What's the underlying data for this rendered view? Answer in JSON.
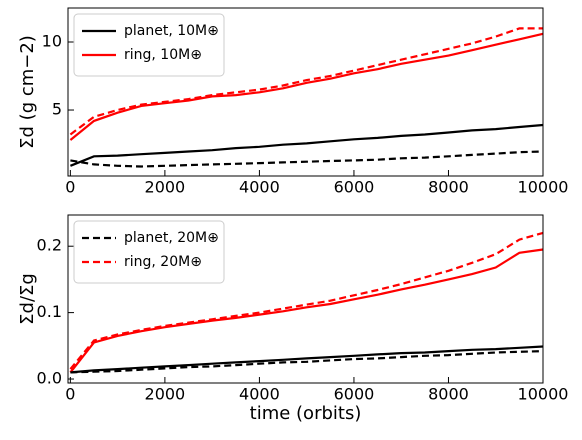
{
  "chart_data": [
    {
      "type": "line",
      "ylabel": "Σd (g cm−2)",
      "x": [
        0,
        500,
        1000,
        1500,
        2000,
        2500,
        3000,
        3500,
        4000,
        4500,
        5000,
        5500,
        6000,
        6500,
        7000,
        7500,
        8000,
        8500,
        9000,
        9500,
        10000
      ],
      "xlim": [
        -50,
        10000
      ],
      "xticks": [
        0,
        2000,
        4000,
        6000,
        8000,
        10000
      ],
      "ylim": [
        0.15,
        12.5
      ],
      "yticks": [
        5,
        10
      ],
      "legend": "upper left",
      "series": [
        {
          "name": "planet, 10M⊕",
          "color": "#000000",
          "dashed": false,
          "values": [
            0.9,
            1.6,
            1.65,
            1.75,
            1.85,
            1.95,
            2.05,
            2.2,
            2.3,
            2.45,
            2.55,
            2.7,
            2.85,
            2.95,
            3.1,
            3.2,
            3.35,
            3.5,
            3.6,
            3.75,
            3.9
          ]
        },
        {
          "name": "ring, 10M⊕",
          "color": "#ff0000",
          "dashed": false,
          "values": [
            2.8,
            4.2,
            4.8,
            5.3,
            5.5,
            5.7,
            6.0,
            6.1,
            6.3,
            6.6,
            7.0,
            7.3,
            7.7,
            8.0,
            8.4,
            8.7,
            9.0,
            9.4,
            9.8,
            10.2,
            10.6
          ]
        },
        {
          "name": null,
          "color": "#000000",
          "dashed": true,
          "values": [
            1.3,
            1.0,
            0.9,
            0.85,
            0.9,
            0.95,
            1.0,
            1.05,
            1.1,
            1.15,
            1.2,
            1.25,
            1.3,
            1.35,
            1.45,
            1.5,
            1.6,
            1.7,
            1.8,
            1.9,
            1.95
          ]
        },
        {
          "name": null,
          "color": "#ff0000",
          "dashed": true,
          "values": [
            3.2,
            4.5,
            5.0,
            5.4,
            5.6,
            5.8,
            6.1,
            6.3,
            6.5,
            6.8,
            7.2,
            7.5,
            7.9,
            8.3,
            8.7,
            9.1,
            9.5,
            9.9,
            10.4,
            11.0,
            11.0
          ]
        }
      ]
    },
    {
      "type": "line",
      "ylabel": "Σd/Σg",
      "xlabel": "time (orbits)",
      "x": [
        0,
        500,
        1000,
        1500,
        2000,
        2500,
        3000,
        3500,
        4000,
        4500,
        5000,
        5500,
        6000,
        6500,
        7000,
        7500,
        8000,
        8500,
        9000,
        9500,
        10000
      ],
      "xlim": [
        -50,
        10000
      ],
      "xticks": [
        0,
        2000,
        4000,
        6000,
        8000,
        10000
      ],
      "ylim": [
        -0.006,
        0.247
      ],
      "yticks": [
        {
          "value": 0,
          "label": "0.0"
        },
        0.1,
        0.2
      ],
      "legend": "upper left",
      "series": [
        {
          "name": null,
          "color": "#000000",
          "dashed": false,
          "values": [
            0.01,
            0.013,
            0.015,
            0.017,
            0.019,
            0.021,
            0.023,
            0.025,
            0.027,
            0.029,
            0.031,
            0.033,
            0.035,
            0.037,
            0.039,
            0.04,
            0.042,
            0.044,
            0.045,
            0.047,
            0.049
          ]
        },
        {
          "name": null,
          "color": "#ff0000",
          "dashed": false,
          "values": [
            0.01,
            0.055,
            0.065,
            0.072,
            0.078,
            0.083,
            0.088,
            0.092,
            0.097,
            0.102,
            0.108,
            0.113,
            0.12,
            0.127,
            0.135,
            0.142,
            0.15,
            0.158,
            0.168,
            0.19,
            0.195
          ]
        },
        {
          "name": "planet, 20M⊕",
          "color": "#000000",
          "dashed": true,
          "values": [
            0.01,
            0.011,
            0.012,
            0.014,
            0.016,
            0.018,
            0.019,
            0.021,
            0.023,
            0.025,
            0.026,
            0.028,
            0.03,
            0.031,
            0.033,
            0.035,
            0.036,
            0.038,
            0.04,
            0.041,
            0.042
          ]
        },
        {
          "name": "ring, 20M⊕",
          "color": "#ff0000",
          "dashed": true,
          "values": [
            0.015,
            0.058,
            0.067,
            0.074,
            0.08,
            0.085,
            0.09,
            0.095,
            0.1,
            0.106,
            0.112,
            0.118,
            0.126,
            0.134,
            0.143,
            0.153,
            0.163,
            0.175,
            0.188,
            0.21,
            0.22
          ]
        }
      ]
    }
  ]
}
